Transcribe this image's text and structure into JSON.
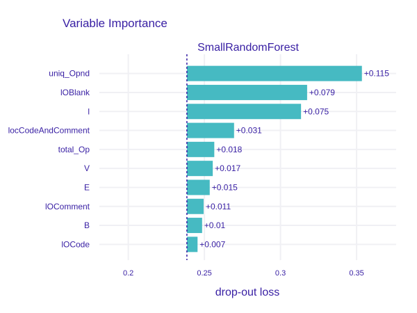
{
  "title": "Variable Importance",
  "chart_data": {
    "type": "bar",
    "orientation": "horizontal",
    "subtitle": "SmallRandomForest",
    "xlabel": "drop-out loss",
    "baseline": 0.2385,
    "xlim": [
      0.181,
      0.376
    ],
    "xticks": [
      "0.2",
      "0.25",
      "0.3",
      "0.35"
    ],
    "xtick_values": [
      0.2,
      0.25,
      0.3,
      0.35
    ],
    "grid": true,
    "categories": [
      "uniq_Opnd",
      "lOBlank",
      "l",
      "locCodeAndComment",
      "total_Op",
      "V",
      "E",
      "lOComment",
      "B",
      "lOCode"
    ],
    "values": [
      0.115,
      0.079,
      0.075,
      0.031,
      0.018,
      0.017,
      0.015,
      0.011,
      0.01,
      0.007
    ],
    "value_labels": [
      "+0.115",
      "+0.079",
      "+0.075",
      "+0.031",
      "+0.018",
      "+0.017",
      "+0.015",
      "+0.011",
      "+0.01",
      "+0.007"
    ],
    "bar_color": "#46bac2",
    "baseline_color": "#371ea3",
    "text_color": "#371ea3"
  }
}
